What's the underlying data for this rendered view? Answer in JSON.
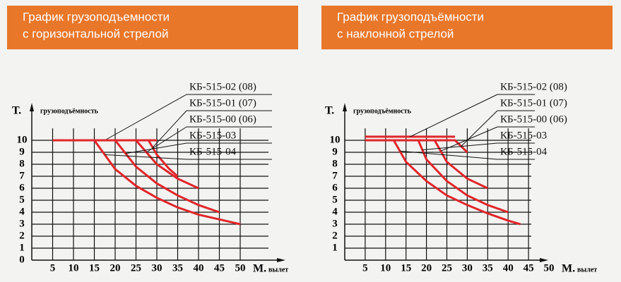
{
  "chart_data": [
    {
      "type": "line",
      "title_lines": [
        "График грузоподъемности",
        "с горизонтальной стрелой"
      ],
      "y_label": "Т.",
      "y_caption": "грузоподъёмность",
      "x_label": "М.",
      "x_caption": "вылет",
      "xlim": [
        0,
        50
      ],
      "xticks": [
        5,
        10,
        15,
        20,
        25,
        30,
        35,
        40,
        45,
        50
      ],
      "ylim": [
        0,
        11
      ],
      "yticks": [
        0,
        1,
        2,
        3,
        4,
        5,
        6,
        7,
        8,
        9,
        10
      ],
      "grid": true,
      "series": [
        {
          "name": "КБ-515-02 (08)",
          "color": "#e0262a",
          "x": [
            5,
            30
          ],
          "values": [
            10,
            10
          ]
        },
        {
          "name": "КБ-515-01 (07)",
          "color": "#e0262a",
          "x": [
            5,
            28,
            30,
            33,
            35
          ],
          "values": [
            10,
            10,
            8.8,
            7.6,
            7
          ]
        },
        {
          "name": "КБ-515-00 (06)",
          "color": "#e0262a",
          "x": [
            5,
            25,
            30,
            35,
            40
          ],
          "values": [
            10,
            10,
            8,
            6.8,
            6
          ]
        },
        {
          "name": "КБ-515-03",
          "color": "#e0262a",
          "x": [
            5,
            20,
            25,
            30,
            35,
            40,
            45
          ],
          "values": [
            10,
            10,
            7.8,
            6.4,
            5.4,
            4.6,
            4
          ]
        },
        {
          "name": "КБ-515-04",
          "color": "#e0262a",
          "x": [
            5,
            15,
            20,
            25,
            30,
            35,
            40,
            45,
            50
          ],
          "values": [
            10,
            10,
            7.6,
            6.2,
            5.2,
            4.4,
            3.8,
            3.4,
            3
          ]
        }
      ]
    },
    {
      "type": "line",
      "title_lines": [
        "График грузоподъёмности",
        "с наклонной стрелой"
      ],
      "y_label": "Т.",
      "y_caption": "грузоподъёмность",
      "x_label": "М.",
      "x_caption": "вылет",
      "xlim": [
        0,
        50
      ],
      "xticks": [
        5,
        10,
        15,
        20,
        25,
        30,
        35,
        40,
        45,
        50
      ],
      "ylim": [
        0,
        11
      ],
      "yticks": [
        1,
        2,
        3,
        4,
        5,
        6,
        7,
        8,
        9,
        10
      ],
      "grid": true,
      "series": [
        {
          "name": "КБ-515-02 (08)",
          "color": "#e0262a",
          "x": [
            5,
            27
          ],
          "values": [
            10.3,
            10.3
          ]
        },
        {
          "name": "КБ-515-01 (07)",
          "color": "#e0262a",
          "x": [
            5,
            27,
            30
          ],
          "values": [
            10,
            10,
            9
          ]
        },
        {
          "name": "КБ-515-00 (06)",
          "color": "#e0262a",
          "x": [
            5,
            22,
            25,
            30,
            35
          ],
          "values": [
            10,
            10,
            8.2,
            6.8,
            6
          ]
        },
        {
          "name": "КБ-515-03",
          "color": "#e0262a",
          "x": [
            5,
            18,
            20,
            25,
            30,
            35,
            40
          ],
          "values": [
            10,
            10,
            8.4,
            6.6,
            5.4,
            4.6,
            4
          ]
        },
        {
          "name": "КБ-515-04",
          "color": "#e0262a",
          "x": [
            5,
            12,
            15,
            20,
            25,
            30,
            35,
            40,
            43
          ],
          "values": [
            10,
            10,
            8.2,
            6.6,
            5.4,
            4.6,
            3.9,
            3.3,
            3
          ]
        }
      ]
    }
  ]
}
